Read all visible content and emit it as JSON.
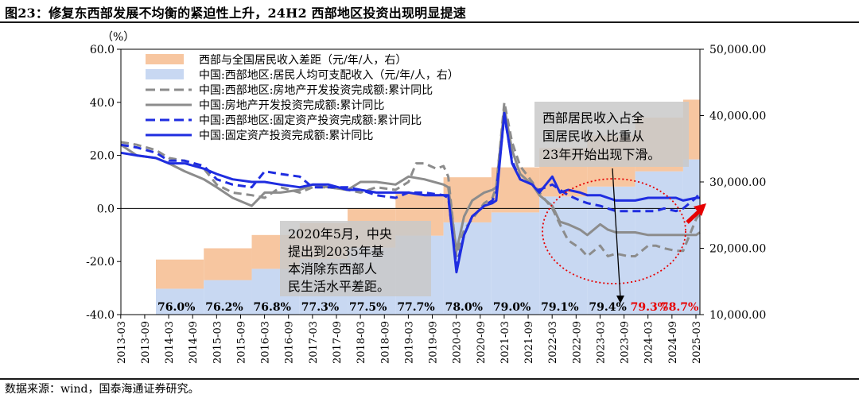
{
  "title": "图23：修复东西部发展不均衡的紧迫性上升，24H2 西部地区投资出现明显提速",
  "source": "数据来源：wind，国泰海通证券研究。",
  "chart_data": {
    "type": "line",
    "left_axis": {
      "unit_label": "（%）",
      "range": [
        -40,
        60
      ],
      "ticks": [
        "60.0",
        "40.0",
        "20.0",
        "0.0",
        "-20.0",
        "-40.0"
      ]
    },
    "right_axis": {
      "range": [
        10000,
        50000
      ],
      "ticks": [
        "50,000.00",
        "40,000.00",
        "30,000.00",
        "20,000.00",
        "10,000.00"
      ]
    },
    "x_ticks": [
      "2013-03",
      "2013-09",
      "2014-03",
      "2014-09",
      "2015-03",
      "2015-09",
      "2016-03",
      "2016-09",
      "2017-03",
      "2017-09",
      "2018-03",
      "2018-09",
      "2019-03",
      "2019-09",
      "2020-03",
      "2020-09",
      "2021-03",
      "2021-09",
      "2022-03",
      "2022-09",
      "2023-03",
      "2023-09",
      "2024-03",
      "2024-09",
      "2025-03"
    ],
    "legend": [
      {
        "label": "西部与全国居民收入差距（元/年/人，右）",
        "color": "#f7c6a0",
        "style": "area"
      },
      {
        "label": "中国:西部地区:居民人均可支配收入（元/年/人，右）",
        "color": "#c8d8f2",
        "style": "area"
      },
      {
        "label": "中国:西部地区:房地产开发投资完成额:累计同比",
        "color": "#8c8c8c",
        "style": "dash"
      },
      {
        "label": "中国:房地产开发投资完成额:累计同比",
        "color": "#8c8c8c",
        "style": "solid"
      },
      {
        "label": "中国:西部地区:固定资产投资完成额:累计同比",
        "color": "#1f2de0",
        "style": "dash"
      },
      {
        "label": "中国:固定资产投资完成额:累计同比",
        "color": "#1f2de0",
        "style": "solid"
      }
    ],
    "series": [
      {
        "name": "中国:西部地区:房地产开发投资完成额:累计同比",
        "x": [
          2013.17,
          2013.5,
          2013.9,
          2014.17,
          2014.5,
          2014.9,
          2015.17,
          2015.5,
          2015.9,
          2016.17,
          2016.5,
          2016.9,
          2017.17,
          2017.5,
          2017.9,
          2018.17,
          2018.5,
          2018.9,
          2019.17,
          2019.33,
          2019.5,
          2019.75,
          2019.9,
          2020.0,
          2020.17,
          2020.33,
          2020.5,
          2020.75,
          2020.92,
          2021.0,
          2021.17,
          2021.33,
          2021.5,
          2021.75,
          2021.9,
          2022.17,
          2022.33,
          2022.5,
          2022.75,
          2022.9,
          2023.17,
          2023.33,
          2023.5,
          2023.75,
          2023.9,
          2024.17,
          2024.33,
          2024.5,
          2024.75,
          2024.9,
          2025.17,
          2025.25
        ],
        "values": [
          25,
          24,
          22,
          19,
          18,
          15,
          9,
          6,
          5,
          4,
          8,
          6,
          8,
          8,
          7,
          6,
          8,
          7,
          10,
          17,
          17,
          15,
          16,
          12,
          -18,
          -8,
          -4,
          2,
          4,
          8,
          40,
          25,
          16,
          10,
          6,
          0,
          -6,
          -12,
          -15,
          -18,
          -14,
          -18,
          -17,
          -18,
          -18,
          -14,
          -14,
          -15,
          -16,
          -16,
          -4,
          -2
        ]
      },
      {
        "name": "中国:房地产开发投资完成额:累计同比",
        "x": [
          2013.17,
          2013.5,
          2013.9,
          2014.17,
          2014.5,
          2014.9,
          2015.17,
          2015.5,
          2015.9,
          2016.17,
          2016.5,
          2016.9,
          2017.17,
          2017.5,
          2017.9,
          2018.17,
          2018.5,
          2018.9,
          2019.17,
          2019.5,
          2019.9,
          2020.0,
          2020.17,
          2020.33,
          2020.5,
          2020.75,
          2020.92,
          2021.0,
          2021.17,
          2021.33,
          2021.5,
          2021.75,
          2021.9,
          2022.17,
          2022.33,
          2022.5,
          2022.75,
          2022.9,
          2023.17,
          2023.33,
          2023.5,
          2023.75,
          2023.9,
          2024.17,
          2024.33,
          2024.5,
          2024.75,
          2024.9,
          2025.17,
          2025.25
        ],
        "values": [
          24,
          20,
          19,
          17,
          14,
          11,
          8,
          4,
          1,
          6,
          6,
          7,
          9,
          8,
          7,
          10,
          10,
          9,
          12,
          11,
          9,
          8,
          -16,
          -3,
          3,
          6,
          7,
          8,
          38,
          22,
          13,
          9,
          5,
          1,
          -5,
          -6,
          -8,
          -10,
          -6,
          -8,
          -9,
          -9,
          -9,
          -10,
          -10,
          -10,
          -10,
          -10,
          -10,
          -9
        ]
      },
      {
        "name": "中国:西部地区:固定资产投资完成额:累计同比",
        "x": [
          2013.17,
          2013.5,
          2013.9,
          2014.17,
          2014.5,
          2014.9,
          2015.17,
          2015.5,
          2015.9,
          2016.17,
          2016.5,
          2016.9,
          2017.17,
          2017.5,
          2017.9,
          2018.17,
          2018.5,
          2018.9,
          2019.17,
          2019.5,
          2019.9,
          2020.0,
          2020.17,
          2020.33,
          2020.5,
          2020.75,
          2020.92,
          2021.0,
          2021.17,
          2021.33,
          2021.5,
          2021.75,
          2021.9,
          2022.17,
          2022.33,
          2022.5,
          2022.75,
          2022.9,
          2023.17,
          2023.33,
          2023.5,
          2023.75,
          2023.9,
          2024.17,
          2024.33,
          2024.5,
          2024.75,
          2024.9,
          2025.17,
          2025.25
        ],
        "values": [
          24,
          23,
          21,
          18,
          18,
          16,
          11,
          9,
          8,
          14,
          13,
          12,
          8,
          8,
          8,
          7,
          5,
          4,
          6,
          6,
          5,
          4,
          -22,
          -10,
          -3,
          1,
          3,
          6,
          35,
          18,
          11,
          9,
          7,
          9,
          7,
          5,
          3,
          2,
          1,
          0,
          -1,
          -1,
          -1,
          -1,
          -1,
          0,
          -1,
          0,
          4,
          6
        ]
      },
      {
        "name": "中国:固定资产投资完成额:累计同比",
        "x": [
          2013.17,
          2013.5,
          2013.9,
          2014.17,
          2014.5,
          2014.9,
          2015.17,
          2015.5,
          2015.9,
          2016.17,
          2016.5,
          2016.9,
          2017.17,
          2017.5,
          2017.9,
          2018.17,
          2018.5,
          2018.9,
          2019.17,
          2019.5,
          2019.9,
          2020.0,
          2020.17,
          2020.33,
          2020.5,
          2020.75,
          2020.92,
          2021.0,
          2021.17,
          2021.33,
          2021.5,
          2021.75,
          2021.9,
          2022.17,
          2022.33,
          2022.5,
          2022.75,
          2022.9,
          2023.17,
          2023.33,
          2023.5,
          2023.75,
          2023.9,
          2024.17,
          2024.33,
          2024.5,
          2024.75,
          2024.9,
          2025.17,
          2025.25
        ],
        "values": [
          21,
          20,
          19,
          17,
          17,
          15,
          13,
          11,
          10,
          10,
          9,
          8,
          9,
          9,
          7,
          7,
          6,
          6,
          6,
          5,
          5,
          5,
          -24,
          -10,
          -3,
          1,
          2,
          3,
          36,
          17,
          11,
          9,
          6,
          12,
          6,
          7,
          6,
          5,
          5,
          4,
          3,
          3,
          3,
          4,
          4,
          4,
          4,
          3,
          4,
          4
        ]
      }
    ],
    "area_series": [
      {
        "name": "中国:西部地区:居民人均可支配收入（元/年/人，右）",
        "years": [
          2013,
          2014,
          2015,
          2016,
          2017,
          2018,
          2019,
          2020,
          2021,
          2022,
          2023,
          2024
        ],
        "values": [
          13900,
          15200,
          16900,
          18400,
          20100,
          21900,
          23900,
          25400,
          27800,
          29300,
          31600,
          33400
        ]
      },
      {
        "name": "西部与全国居民收入差距（元/年/人，右）",
        "years": [
          2013,
          2014,
          2015,
          2016,
          2017,
          2018,
          2019,
          2020,
          2021,
          2022,
          2023,
          2024
        ],
        "values": [
          4400,
          4800,
          5100,
          5400,
          5900,
          6300,
          6800,
          6800,
          7300,
          7700,
          8100,
          9000
        ]
      }
    ],
    "ratio_labels": [
      "76.0%",
      "76.2%",
      "76.8%",
      "77.3%",
      "77.5%",
      "77.7%",
      "78.0%",
      "79.0%",
      "79.1%",
      "79.4%",
      "79.3%",
      "78.7%"
    ],
    "annotations": {
      "note1": [
        "2020年5月，中央",
        "提出到2035年基",
        "本消除东西部人",
        "民生活水平差距。"
      ],
      "note2": [
        "西部居民收入占全",
        "国居民收入比重从",
        "23年开始出现下滑。"
      ]
    },
    "colors": {
      "highlight_red": "#e60000",
      "note_bg": "#c9c9c9"
    }
  }
}
